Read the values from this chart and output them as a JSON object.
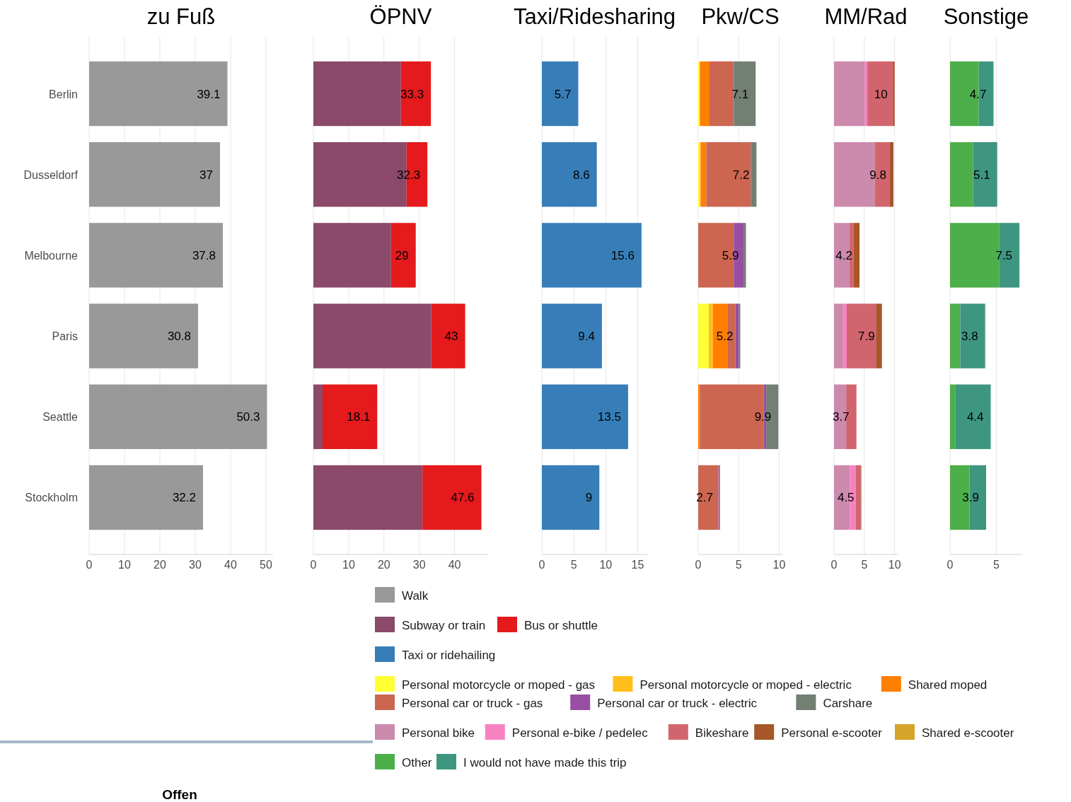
{
  "chart_data": [
    {
      "type": "bar",
      "title": "zu Fuß",
      "orientation": "horizontal",
      "stacked": true,
      "categories": [
        "Berlin",
        "Dusseldorf",
        "Melbourne",
        "Paris",
        "Seattle",
        "Stockholm"
      ],
      "xlim": [
        0,
        52
      ],
      "xticks": [
        0,
        10,
        20,
        30,
        40,
        50
      ],
      "grid": "x",
      "legend": "bottom",
      "annotations": [
        "Offen"
      ],
      "series": [
        {
          "name": "Walk",
          "color": "#999999",
          "values": [
            39.1,
            37,
            37.8,
            30.8,
            50.3,
            32.2
          ]
        }
      ],
      "totals": [
        "39.1",
        "37",
        "37.8",
        "30.8",
        "50.3",
        "32.2"
      ]
    },
    {
      "type": "bar",
      "title": "ÖPNV",
      "orientation": "horizontal",
      "stacked": true,
      "xlim": [
        0,
        49.5
      ],
      "xticks": [
        0,
        10,
        20,
        30,
        40
      ],
      "grid": "x",
      "legend": "bottom",
      "tick_labels": "x",
      "series": [
        {
          "name": "Subway or train",
          "color": "#8b4a6a",
          "values": [
            24.8,
            26.4,
            22.0,
            33.4,
            2.6,
            30.9
          ]
        },
        {
          "name": "Bus or shuttle",
          "color": "#e41a1c",
          "values": [
            8.5,
            5.9,
            7.0,
            9.6,
            15.5,
            16.7
          ]
        }
      ],
      "totals": [
        "33.3",
        "32.3",
        "29",
        "43",
        "18.1",
        "47.6"
      ]
    },
    {
      "type": "bar",
      "title": "Taxi/Ridesharing",
      "orientation": "horizontal",
      "stacked": true,
      "xlim": [
        0,
        16.5
      ],
      "xticks": [
        0,
        5,
        10,
        15
      ],
      "grid": "x",
      "legend": "bottom",
      "tick_labels": "x",
      "series": [
        {
          "name": "Taxi or ridehailing",
          "color": "#377eb8",
          "values": [
            5.7,
            8.6,
            15.6,
            9.4,
            13.5,
            9
          ]
        }
      ],
      "totals": [
        "5.7",
        "8.6",
        "15.6",
        "9.4",
        "13.5",
        "9"
      ]
    },
    {
      "type": "bar",
      "title": "Pkw/CS",
      "orientation": "horizontal",
      "stacked": true,
      "xlim": [
        0,
        10.4
      ],
      "xticks": [
        0,
        5,
        10
      ],
      "grid": "x",
      "legend": "bottom",
      "tick_labels": "x",
      "series": [
        {
          "name": "Personal motorcycle or moped - gas",
          "color": "#ffff33",
          "values": [
            0.2,
            0.2,
            0,
            1.3,
            0,
            0
          ]
        },
        {
          "name": "Personal motorcycle or moped - electric",
          "color": "#ffbf1a",
          "values": [
            0,
            0.1,
            0,
            0.5,
            0,
            0
          ]
        },
        {
          "name": "Shared moped",
          "color": "#ff7f00",
          "values": [
            1.2,
            0.7,
            0,
            1.8,
            0.2,
            0
          ]
        },
        {
          "name": "Personal car or truck - gas",
          "color": "#cc6650",
          "values": [
            2.9,
            5.5,
            4.4,
            1.0,
            7.9,
            2.5
          ]
        },
        {
          "name": "Personal car or truck - electric",
          "color": "#984ea3",
          "values": [
            0.1,
            0,
            1.2,
            0.4,
            0.3,
            0.1
          ]
        },
        {
          "name": "Carshare",
          "color": "#737f73",
          "values": [
            2.7,
            0.7,
            0.3,
            0.2,
            1.5,
            0.1
          ]
        }
      ],
      "totals": [
        "7.1",
        "7.2",
        "5.9",
        "5.2",
        "9.9",
        "2.7"
      ]
    },
    {
      "type": "bar",
      "title": "MM/Rad",
      "orientation": "horizontal",
      "stacked": true,
      "xlim": [
        0,
        10.5
      ],
      "xticks": [
        0,
        5,
        10
      ],
      "grid": "x",
      "legend": "bottom",
      "tick_labels": "x",
      "series": [
        {
          "name": "Personal bike",
          "color": "#cc8aad",
          "values": [
            5.1,
            6.7,
            2.5,
            1.6,
            2.0,
            2.6
          ]
        },
        {
          "name": "Personal e-bike / pedelec",
          "color": "#f781bf",
          "values": [
            0.4,
            0,
            0,
            0.5,
            0,
            1.0
          ]
        },
        {
          "name": "Bikeshare",
          "color": "#d1656e",
          "values": [
            4.3,
            2.5,
            0.7,
            4.9,
            1.7,
            0.8
          ]
        },
        {
          "name": "Personal e-scooter",
          "color": "#a65628",
          "values": [
            0.2,
            0.6,
            1.0,
            0.9,
            0,
            0.1
          ]
        },
        {
          "name": "Shared e-scooter",
          "color": "#d4a52a",
          "values": [
            0,
            0,
            0,
            0,
            0,
            0
          ]
        }
      ],
      "totals": [
        "10",
        "9.8",
        "4.2",
        "7.9",
        "3.7",
        "4.5"
      ]
    },
    {
      "type": "bar",
      "title": "Sonstige",
      "orientation": "horizontal",
      "stacked": true,
      "xlim": [
        0,
        7.8
      ],
      "xticks": [
        0,
        5
      ],
      "grid": "x",
      "legend": "bottom",
      "tick_labels": "x",
      "series": [
        {
          "name": "Other",
          "color": "#4daf4a",
          "values": [
            3.1,
            2.5,
            5.3,
            1.1,
            0.6,
            2.1
          ]
        },
        {
          "name": "I would not have made this trip",
          "color": "#3e9680",
          "values": [
            1.6,
            2.6,
            2.2,
            2.7,
            3.8,
            1.8
          ]
        }
      ],
      "totals": [
        "4.7",
        "5.1",
        "7.5",
        "3.8",
        "4.4",
        "3.9"
      ]
    }
  ]
}
